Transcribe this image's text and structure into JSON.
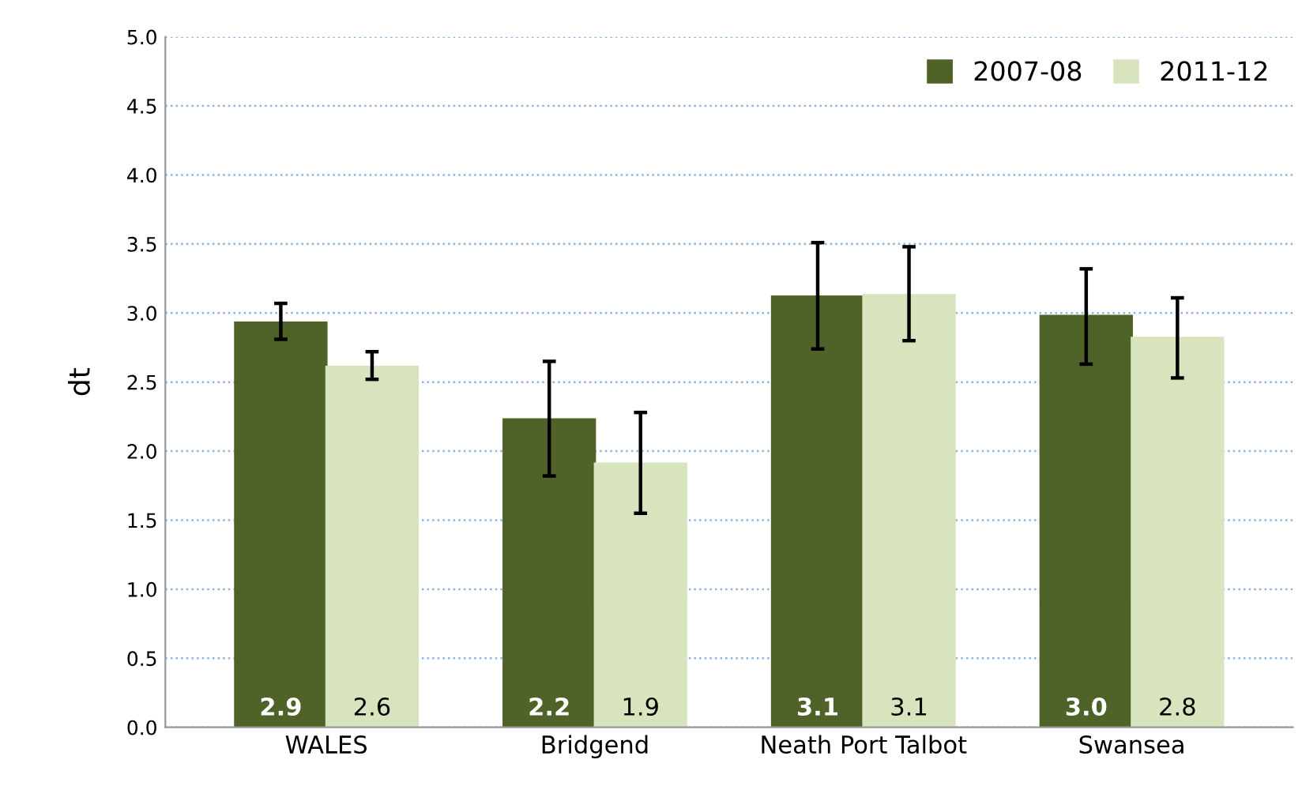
{
  "chart_data": {
    "type": "bar",
    "ylabel": "dt",
    "categories": [
      "WALES",
      "Bridgend",
      "Neath Port Talbot",
      "Swansea"
    ],
    "series": [
      {
        "name": "2007-08",
        "color": "#4f6228",
        "values": [
          2.93,
          2.23,
          3.12,
          2.98
        ],
        "errors": [
          [
            2.81,
            3.07
          ],
          [
            1.82,
            2.65
          ],
          [
            2.74,
            3.51
          ],
          [
            2.63,
            3.32
          ]
        ],
        "value_labels": [
          "2.9",
          "2.2",
          "3.1",
          "3.0"
        ]
      },
      {
        "name": "2011-12",
        "color": "#d7e4bd",
        "values": [
          2.61,
          1.91,
          3.13,
          2.82
        ],
        "errors": [
          [
            2.52,
            2.72
          ],
          [
            1.55,
            2.28
          ],
          [
            2.8,
            3.48
          ],
          [
            2.53,
            3.11
          ]
        ],
        "value_labels": [
          "2.6",
          "1.9",
          "3.1",
          "2.8"
        ]
      }
    ],
    "ylim": [
      0,
      5
    ],
    "yticks": [
      {
        "value": 0,
        "label": "0.0"
      },
      {
        "value": 0.5,
        "label": "0.5"
      },
      {
        "value": 1,
        "label": "1.0"
      },
      {
        "value": 1.5,
        "label": "1.5"
      },
      {
        "value": 2,
        "label": "2.0"
      },
      {
        "value": 2.5,
        "label": "2.5"
      },
      {
        "value": 3,
        "label": "3.0"
      },
      {
        "value": 3.5,
        "label": "3.5"
      },
      {
        "value": 4,
        "label": "4.0"
      },
      {
        "value": 4.5,
        "label": "4.5"
      },
      {
        "value": 5,
        "label": "5.0"
      }
    ],
    "grid": "y",
    "legend": "top right"
  }
}
